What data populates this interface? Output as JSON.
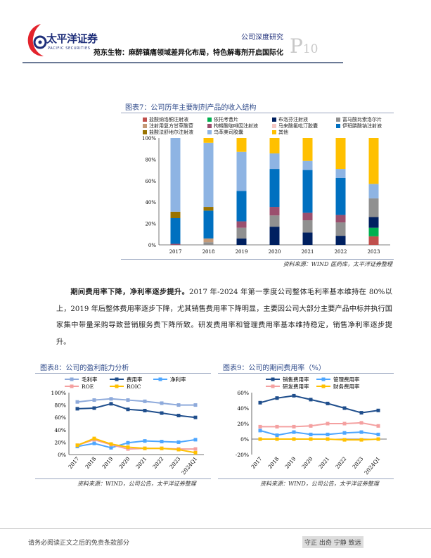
{
  "header": {
    "logo_cn": "太平洋证券",
    "logo_en": "PACIFIC SECURITIES",
    "report_type": "公司深度研究",
    "title": "苑东生物：麻醉镇痛领域差异化布局，特色解毒剂开启国际化",
    "page_prefix": "P",
    "page_number": "10"
  },
  "figure7": {
    "title": "图表7：公司历年主要制剂产品的收入结构",
    "source": "资料来源：WIND 医药库，太平洋证券整理"
  },
  "paragraph": {
    "lead": "期间费用率下降，净利率逐步提升。",
    "body": "2017 年-2024 年第一季度公司整体毛利率基本维持在 80%以上，2019 年后整体费用率逐步下降，尤其销售费用率下降明显，主要因公司大部分主要产品中标并执行国家集中带量采购导致营销服务费下降所致。研发费用率和管理费用率基本维持稳定，销售净利率逐步提升。"
  },
  "figure8": {
    "title": "图表8：公司的盈利能力分析",
    "source": "资料来源：WIND，公司公告，太平洋证券整理"
  },
  "figure9": {
    "title": "图表9：公司的期间费用率（%）",
    "source": "资料来源：WIND，公司公告，太平洋证券整理"
  },
  "footer": {
    "disclaimer": "请务必阅读正文之后的免责条款部分",
    "motto": "守正 出奇 宁静 致远"
  },
  "chart_data": [
    {
      "type": "bar",
      "stacked": true,
      "title": "图表7：公司历年主要制剂产品的收入结构",
      "categories": [
        "2017",
        "2018",
        "2019",
        "2020",
        "2021",
        "2022",
        "2023"
      ],
      "ylim": [
        0,
        100
      ],
      "yticks": [
        "0%",
        "20%",
        "40%",
        "60%",
        "80%",
        "100%"
      ],
      "legend": "top",
      "series": [
        {
          "name": "盐酸纳洛酮注射液",
          "color": "#c0504d",
          "values": [
            0,
            0,
            0,
            0,
            0,
            0,
            8
          ]
        },
        {
          "name": "依托考昔片",
          "color": "#00b050",
          "values": [
            0,
            0,
            0,
            0,
            0,
            0,
            8
          ]
        },
        {
          "name": "布洛芬注射液",
          "color": "#002060",
          "values": [
            0,
            0,
            6,
            17,
            11.5,
            8.5,
            10
          ]
        },
        {
          "name": "富马酸比索洛尔片",
          "color": "#909090",
          "values": [
            0,
            2.5,
            10,
            10.5,
            11.5,
            12.5,
            17.5
          ]
        },
        {
          "name": "注射用复方甘草酸苷",
          "color": "#c49a78",
          "values": [
            0,
            3.5,
            0,
            0,
            0,
            0,
            0
          ]
        },
        {
          "name": "枸橼酸咖啡因注射液",
          "color": "#9b4f6e",
          "values": [
            1,
            0,
            6,
            8,
            7,
            7,
            0
          ]
        },
        {
          "name": "马来酸氟吡汀胶囊",
          "color": "#f4c7c3",
          "values": [
            0,
            0,
            0,
            0,
            0,
            0,
            0
          ]
        },
        {
          "name": "伊班膦酸钠注射液",
          "color": "#0070c0",
          "values": [
            24,
            26,
            28.5,
            35.5,
            40,
            34.5,
            0
          ]
        },
        {
          "name": "盐酸法舒地尔注射液",
          "color": "#997300",
          "values": [
            6,
            3.5,
            0,
            0,
            0,
            0,
            0
          ]
        },
        {
          "name": "乌苯美司胶囊",
          "color": "#8eb4e3",
          "values": [
            69,
            60,
            36.5,
            14.5,
            8.5,
            8.5,
            13.5
          ]
        },
        {
          "name": "其他",
          "color": "#ffc000",
          "values": [
            0,
            4.5,
            13,
            14.5,
            21.5,
            29,
            43
          ]
        }
      ]
    },
    {
      "type": "line",
      "title": "图表8：公司的盈利能力分析",
      "categories": [
        "2017",
        "2018",
        "2019",
        "2020",
        "2021",
        "2022",
        "2023",
        "2024Q1"
      ],
      "ylim": [
        0,
        100
      ],
      "yticks": [
        "0%",
        "20%",
        "40%",
        "60%",
        "80%",
        "100%"
      ],
      "legend": "top",
      "series": [
        {
          "name": "毛利率",
          "color": "#8eaadb",
          "values": [
            85,
            88,
            90,
            88,
            86,
            83,
            80,
            80
          ]
        },
        {
          "name": "费用率",
          "color": "#1f4e8c",
          "values": [
            74,
            75,
            82,
            73,
            71,
            67,
            63,
            60
          ]
        },
        {
          "name": "净利率",
          "color": "#4da6ff",
          "values": [
            13,
            18,
            11,
            19,
            22,
            21,
            20,
            24
          ]
        },
        {
          "name": "ROE",
          "color": "#f4a0a0",
          "values": [
            15,
            24,
            16,
            9,
            10,
            10,
            9,
            9
          ]
        },
        {
          "name": "ROIC",
          "color": "#ffc000",
          "values": [
            15,
            26,
            17,
            12,
            10,
            10,
            8,
            3
          ]
        }
      ]
    },
    {
      "type": "line",
      "title": "图表9：公司的期间费用率（%）",
      "categories": [
        "2017",
        "2018",
        "2019",
        "2020",
        "2021",
        "2022",
        "2023",
        "2024Q1"
      ],
      "ylim": [
        -20,
        60
      ],
      "yticks": [
        "-20%",
        "0%",
        "20%",
        "40%",
        "60%"
      ],
      "legend": "top",
      "series": [
        {
          "name": "销售费用率",
          "color": "#1f4e8c",
          "values": [
            47,
            53,
            56,
            51,
            46,
            40,
            34,
            37
          ]
        },
        {
          "name": "管理费用率",
          "color": "#4da6ff",
          "values": [
            11,
            5,
            9,
            6,
            6,
            8,
            9,
            6
          ]
        },
        {
          "name": "研发费用率",
          "color": "#f4a0a0",
          "values": [
            16,
            16,
            16,
            17,
            20,
            20,
            21,
            17
          ]
        },
        {
          "name": "财务费用率",
          "color": "#ffc000",
          "values": [
            0,
            0,
            0,
            0,
            0,
            -1,
            -1,
            0
          ]
        }
      ]
    }
  ]
}
